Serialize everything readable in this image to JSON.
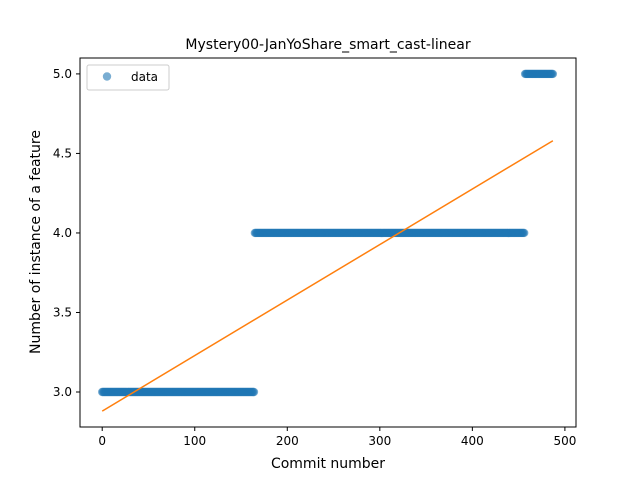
{
  "chart_data": {
    "type": "scatter",
    "title": "Mystery00-JanYoShare_smart_cast-linear",
    "xlabel": "Commit number",
    "ylabel": "Number of instance of a feature",
    "xlim": [
      -24,
      512
    ],
    "ylim": [
      2.78,
      5.1
    ],
    "xticks": [
      0,
      100,
      200,
      300,
      400,
      500
    ],
    "yticks": [
      3.0,
      3.5,
      4.0,
      4.5,
      5.0
    ],
    "grid": false,
    "legend": {
      "placement": "upper-left",
      "entries": [
        "data"
      ]
    },
    "colors": {
      "data": "#1f77b4",
      "fit": "#ff7f0e"
    },
    "series": [
      {
        "name": "data",
        "kind": "scatter",
        "segments": [
          {
            "x_start": 0,
            "x_end": 164,
            "y": 3.0
          },
          {
            "x_start": 165,
            "x_end": 456,
            "y": 4.0
          },
          {
            "x_start": 457,
            "x_end": 487,
            "y": 5.0
          }
        ]
      },
      {
        "kind": "line",
        "x": [
          0,
          487
        ],
        "y": [
          2.88,
          4.58
        ]
      }
    ]
  }
}
